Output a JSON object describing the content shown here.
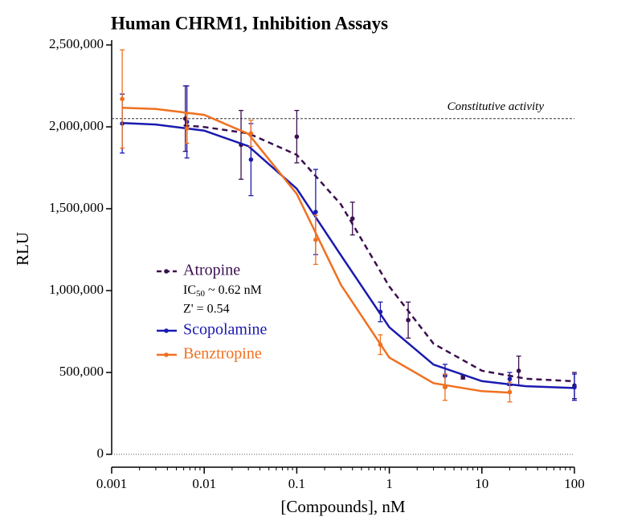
{
  "chart_data": {
    "type": "dose-response",
    "title": "Human CHRM1, Inhibition Assays",
    "x_label": "[Compounds], nM",
    "y_label": "RLU",
    "x_log": true,
    "xlim": [
      0.001,
      100
    ],
    "xticks": [
      0.001,
      0.01,
      0.1,
      1,
      10,
      100
    ],
    "ylim": [
      0,
      2500000
    ],
    "yticks": [
      0,
      {
        "value": 500000,
        "label": "500,000"
      },
      {
        "value": 1000000,
        "label": "1,000,000"
      },
      {
        "value": 1500000,
        "label": "1,500,000"
      },
      {
        "value": 2000000,
        "label": "2,000,000"
      },
      {
        "value": 2500000,
        "label": "2,500,000"
      }
    ],
    "reference_line": {
      "label": "Constitutive activity",
      "value": 2050000
    },
    "annotation": {
      "ic50_prefix": "IC",
      "ic50_sub": "50",
      "ic50_rest": " ~ 0.62 nM",
      "z_prime": "Z' = 0.54"
    },
    "series": [
      {
        "name": "Atropine",
        "color": "#3b0f4f",
        "line_style": "dashed",
        "x": [
          0.00625,
          0.025,
          0.1,
          0.4,
          1.6,
          6.25,
          25,
          100
        ],
        "values": [
          2050000,
          1890000,
          1940000,
          1440000,
          820000,
          470000,
          510000,
          420000
        ],
        "errors": [
          200000,
          210000,
          160000,
          100000,
          110000,
          10000,
          90000,
          80000
        ],
        "curve": {
          "x": [
            0.006,
            0.01,
            0.03,
            0.1,
            0.3,
            1,
            3,
            10,
            30,
            100
          ],
          "values": [
            2009000,
            1999000,
            1960000,
            1829000,
            1526000,
            1025000,
            676000,
            511000,
            462000,
            446000
          ]
        }
      },
      {
        "name": "Scopolamine",
        "color": "#1a1ab0",
        "line_style": "solid",
        "x": [
          0.0013,
          0.0065,
          0.032,
          0.16,
          0.8,
          4,
          20,
          100
        ],
        "values": [
          2020000,
          2030000,
          1800000,
          1480000,
          870000,
          480000,
          460000,
          410000
        ],
        "errors": [
          180000,
          220000,
          220000,
          260000,
          60000,
          70000,
          40000,
          80000
        ],
        "curve": {
          "x": [
            0.0013,
            0.003,
            0.01,
            0.03,
            0.1,
            0.3,
            1,
            3,
            10,
            30,
            100
          ],
          "values": [
            2023000,
            2014000,
            1977000,
            1882000,
            1622000,
            1215000,
            776000,
            548000,
            447000,
            416000,
            405000
          ]
        }
      },
      {
        "name": "Benztropine",
        "color": "#f07020",
        "line_style": "solid",
        "x": [
          0.0013,
          0.0065,
          0.032,
          0.16,
          0.8,
          4,
          20
        ],
        "values": [
          2170000,
          1990000,
          1960000,
          1310000,
          670000,
          410000,
          380000
        ],
        "errors": [
          300000,
          90000,
          80000,
          150000,
          60000,
          80000,
          60000
        ],
        "curve": {
          "x": [
            0.0013,
            0.003,
            0.01,
            0.03,
            0.1,
            0.3,
            1,
            3,
            10,
            20
          ],
          "values": [
            2116000,
            2109000,
            2073000,
            1957000,
            1590000,
            1035000,
            591000,
            435000,
            386000,
            377000
          ]
        }
      }
    ]
  }
}
